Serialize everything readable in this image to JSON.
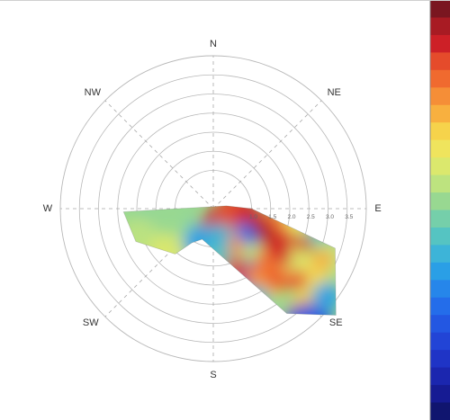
{
  "chart_data": {
    "type": "heatmap",
    "projection": "polar",
    "title": "",
    "subtitle": "",
    "directions": [
      "N",
      "NE",
      "E",
      "SE",
      "S",
      "SW",
      "W",
      "NW"
    ],
    "radial_ticks": [
      "1.0",
      "1.5",
      "2.0",
      "2.5",
      "3.0",
      "3.5"
    ],
    "radial_range": [
      0,
      4.0
    ],
    "grid": true,
    "colormap": "jet",
    "colorbar": {
      "placement": "right",
      "colors": [
        "#7a1620",
        "#a81b23",
        "#cd2027",
        "#e54b2b",
        "#f06a2f",
        "#f58e37",
        "#f8b03f",
        "#f6d34b",
        "#efe45d",
        "#dbe86d",
        "#bde37f",
        "#98d891",
        "#75cfaa",
        "#55c4c2",
        "#3db4d8",
        "#2a9fe6",
        "#2686ea",
        "#246dea",
        "#2357e2",
        "#2244d6",
        "#1f34c6",
        "#1b26af",
        "#161b93",
        "#10156f"
      ]
    },
    "data_region": {
      "boundary_polar": [
        {
          "direction_deg": 90,
          "r": 1.0
        },
        {
          "direction_deg": 108,
          "r": 3.35
        },
        {
          "direction_deg": 131,
          "r": 4.25
        },
        {
          "direction_deg": 145,
          "r": 3.35
        },
        {
          "direction_deg": 200,
          "r": 0.85
        },
        {
          "direction_deg": 212,
          "r": 1.05
        },
        {
          "direction_deg": 220,
          "r": 1.55
        },
        {
          "direction_deg": 247,
          "r": 2.2
        },
        {
          "direction_deg": 268,
          "r": 2.35
        },
        {
          "direction_deg": 78,
          "r": 0.35
        }
      ],
      "hotspots": [
        {
          "direction_deg": 178,
          "r": 0.35,
          "value": 0.92
        },
        {
          "direction_deg": 93,
          "r": 0.55,
          "value": 0.88
        },
        {
          "direction_deg": 102,
          "r": 0.95,
          "value": 0.9
        },
        {
          "direction_deg": 110,
          "r": 1.55,
          "value": 0.84
        },
        {
          "direction_deg": 118,
          "r": 2.15,
          "value": 0.86
        },
        {
          "direction_deg": 126,
          "r": 2.75,
          "value": 0.88
        },
        {
          "direction_deg": 132,
          "r": 3.35,
          "value": 0.6
        },
        {
          "direction_deg": 139,
          "r": 3.75,
          "value": 0.72
        },
        {
          "direction_deg": 138,
          "r": 4.0,
          "value": 0.18
        },
        {
          "direction_deg": 142,
          "r": 3.92,
          "value": 0.22
        },
        {
          "direction_deg": 123,
          "r": 3.0,
          "value": 0.64
        },
        {
          "direction_deg": 150,
          "r": 1.5,
          "value": 0.55
        },
        {
          "direction_deg": 157,
          "r": 1.95,
          "value": 0.18
        },
        {
          "direction_deg": 125,
          "r": 1.1,
          "value": 0.24
        },
        {
          "direction_deg": 143,
          "r": 2.35,
          "value": 0.7
        },
        {
          "direction_deg": 155,
          "r": 2.6,
          "value": 0.38
        },
        {
          "direction_deg": 166,
          "r": 1.05,
          "value": 0.78
        },
        {
          "direction_deg": 245,
          "r": 0.95,
          "value": 0.4
        },
        {
          "direction_deg": 238,
          "r": 1.25,
          "value": 0.58
        },
        {
          "direction_deg": 258,
          "r": 1.7,
          "value": 0.48
        },
        {
          "direction_deg": 248,
          "r": 2.05,
          "value": 0.56
        },
        {
          "direction_deg": 215,
          "r": 1.3,
          "value": 0.46
        },
        {
          "direction_deg": 223,
          "r": 1.65,
          "value": 0.62
        },
        {
          "direction_deg": 202,
          "r": 0.95,
          "value": 0.34
        },
        {
          "direction_deg": 265,
          "r": 1.1,
          "value": 0.52
        },
        {
          "direction_deg": 176,
          "r": 1.4,
          "value": 0.43
        },
        {
          "direction_deg": 168,
          "r": 0.72,
          "value": 0.4
        },
        {
          "direction_deg": 95,
          "r": 2.35,
          "value": 0.65
        },
        {
          "direction_deg": 101,
          "r": 2.85,
          "value": 0.42
        },
        {
          "direction_deg": 112,
          "r": 3.45,
          "value": 0.58
        },
        {
          "direction_deg": 128,
          "r": 3.75,
          "value": 0.33
        },
        {
          "direction_deg": 133,
          "r": 2.2,
          "value": 0.84
        },
        {
          "direction_deg": 122,
          "r": 2.55,
          "value": 0.62
        }
      ],
      "base_value": 0.52
    }
  }
}
